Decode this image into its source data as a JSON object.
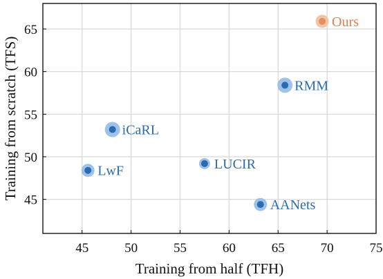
{
  "chart_data": {
    "type": "scatter",
    "xlabel": "Training from half (TFH)",
    "ylabel": "Training from scratch (TFS)",
    "xlim": [
      41,
      75
    ],
    "ylim": [
      41,
      68
    ],
    "xticks": [
      45,
      50,
      55,
      60,
      65,
      70,
      75
    ],
    "yticks": [
      45,
      50,
      55,
      60,
      65
    ],
    "grid": true,
    "colors": {
      "default_inner": "#2a6bb1",
      "default_halo": "#9ec2ea",
      "default_label": "#2a6bb1",
      "ours_inner": "#e59063",
      "ours_halo": "#f2c4a8",
      "ours_label": "#d9834f",
      "grid": "#d6d6d6",
      "axis": "#000000"
    },
    "points": [
      {
        "label": "Ours",
        "x": 69.5,
        "y": 65.9,
        "halo": "medium",
        "highlight": true
      },
      {
        "label": "RMM",
        "x": 65.7,
        "y": 58.4,
        "halo": "large",
        "highlight": false
      },
      {
        "label": "iCaRL",
        "x": 48.1,
        "y": 53.2,
        "halo": "large",
        "highlight": false
      },
      {
        "label": "LUCIR",
        "x": 57.5,
        "y": 49.2,
        "halo": "small",
        "highlight": false
      },
      {
        "label": "LwF",
        "x": 45.6,
        "y": 48.4,
        "halo": "medium",
        "highlight": false
      },
      {
        "label": "AANets",
        "x": 63.2,
        "y": 44.4,
        "halo": "medium",
        "highlight": false
      }
    ]
  }
}
